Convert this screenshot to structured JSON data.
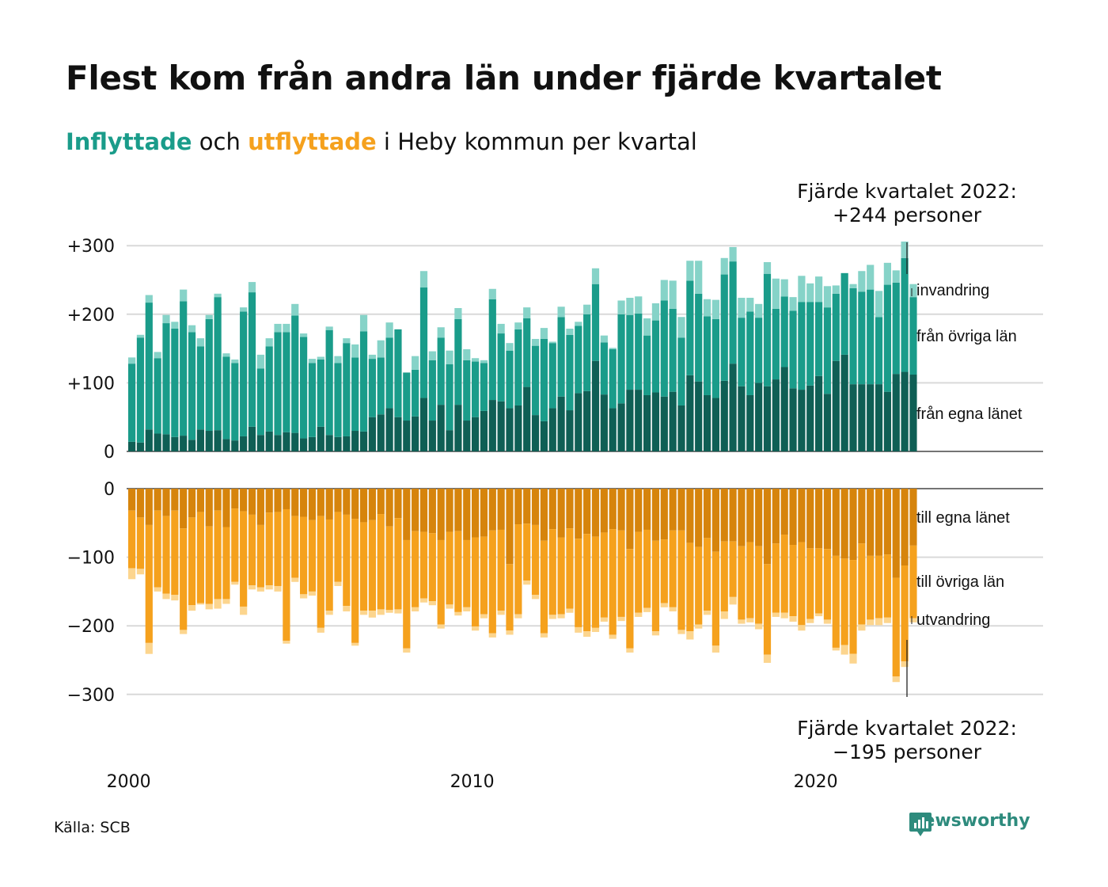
{
  "header": {
    "title": "Flest kom från andra län under fjärde kvartalet",
    "subtitle_in": "Inflyttade",
    "subtitle_and": " och ",
    "subtitle_out": "utflyttade",
    "subtitle_rest": " i Heby kommun per kvartal"
  },
  "annotations": {
    "top_line1": "Fjärde kvartalet 2022:",
    "top_line2": "+244 personer",
    "bottom_line1": "Fjärde kvartalet 2022:",
    "bottom_line2": "−195 personer"
  },
  "footer": {
    "source": "Källa: SCB",
    "brand": "Newsworthy"
  },
  "colors": {
    "in_egna": "#0f5f55",
    "in_ovriga": "#1a9c8a",
    "in_invandring": "#86d3c8",
    "out_egna": "#d6840c",
    "out_ovriga": "#f5a11d",
    "out_utvandring": "#fcd58e",
    "grid": "#d9d9d9",
    "brand": "#2e8b7d"
  },
  "chart_data": {
    "type": "bar",
    "stacked": true,
    "quarters": [
      "2000 Q1",
      "2000 Q2",
      "2000 Q3",
      "2000 Q4",
      "2001 Q1",
      "2001 Q2",
      "2001 Q3",
      "2001 Q4",
      "2002 Q1",
      "2002 Q2",
      "2002 Q3",
      "2002 Q4",
      "2003 Q1",
      "2003 Q2",
      "2003 Q3",
      "2003 Q4",
      "2004 Q1",
      "2004 Q2",
      "2004 Q3",
      "2004 Q4",
      "2005 Q1",
      "2005 Q2",
      "2005 Q3",
      "2005 Q4",
      "2006 Q1",
      "2006 Q2",
      "2006 Q3",
      "2006 Q4",
      "2007 Q1",
      "2007 Q2",
      "2007 Q3",
      "2007 Q4",
      "2008 Q1",
      "2008 Q2",
      "2008 Q3",
      "2008 Q4",
      "2009 Q1",
      "2009 Q2",
      "2009 Q3",
      "2009 Q4",
      "2010 Q1",
      "2010 Q2",
      "2010 Q3",
      "2010 Q4",
      "2011 Q1",
      "2011 Q2",
      "2011 Q3",
      "2011 Q4",
      "2012 Q1",
      "2012 Q2",
      "2012 Q3",
      "2012 Q4",
      "2013 Q1",
      "2013 Q2",
      "2013 Q3",
      "2013 Q4",
      "2014 Q1",
      "2014 Q2",
      "2014 Q3",
      "2014 Q4",
      "2015 Q1",
      "2015 Q2",
      "2015 Q3",
      "2015 Q4",
      "2016 Q1",
      "2016 Q2",
      "2016 Q3",
      "2016 Q4",
      "2017 Q1",
      "2017 Q2",
      "2017 Q3",
      "2017 Q4",
      "2018 Q1",
      "2018 Q2",
      "2018 Q3",
      "2018 Q4",
      "2019 Q1",
      "2019 Q2",
      "2019 Q3",
      "2019 Q4",
      "2020 Q1",
      "2020 Q2",
      "2020 Q3",
      "2020 Q4",
      "2021 Q1",
      "2021 Q2",
      "2021 Q3",
      "2021 Q4",
      "2022 Q1",
      "2022 Q2",
      "2022 Q3",
      "2022 Q4"
    ],
    "x_ticks": [
      {
        "label": "2000",
        "index": 0
      },
      {
        "label": "2010",
        "index": 40
      },
      {
        "label": "2020",
        "index": 80
      }
    ],
    "top_y_ticks": [
      {
        "value": 0,
        "label": "0"
      },
      {
        "value": 100,
        "label": "+100"
      },
      {
        "value": 200,
        "label": "+200"
      },
      {
        "value": 300,
        "label": "+300"
      }
    ],
    "bottom_y_ticks": [
      {
        "value": 0,
        "label": "0"
      },
      {
        "value": -100,
        "label": "−100"
      },
      {
        "value": -200,
        "label": "−200"
      },
      {
        "value": -300,
        "label": "−300"
      }
    ],
    "top_ylim": [
      0,
      300
    ],
    "bottom_ylim": [
      -300,
      0
    ],
    "inflyttade": {
      "series": [
        {
          "name": "från egna länet",
          "values": [
            14,
            13,
            32,
            26,
            25,
            21,
            23,
            17,
            32,
            30,
            31,
            18,
            16,
            22,
            36,
            24,
            29,
            24,
            28,
            27,
            19,
            21,
            36,
            24,
            21,
            22,
            30,
            29,
            50,
            54,
            63,
            50,
            45,
            51,
            78,
            45,
            68,
            31,
            68,
            45,
            50,
            59,
            75,
            73,
            63,
            67,
            94,
            53,
            44,
            63,
            80,
            60,
            85,
            88,
            132,
            83,
            63,
            70,
            90,
            90,
            82,
            86,
            80,
            87,
            67,
            111,
            102,
            82,
            78,
            103,
            128,
            95,
            82,
            100,
            95,
            105,
            123,
            92,
            90,
            96,
            110,
            84,
            132,
            141,
            98,
            98,
            98,
            98,
            87,
            113,
            116,
            112
          ]
        },
        {
          "name": "från övriga län",
          "values": [
            114,
            153,
            185,
            110,
            162,
            158,
            196,
            157,
            121,
            163,
            194,
            120,
            113,
            182,
            196,
            97,
            124,
            150,
            146,
            171,
            148,
            108,
            98,
            153,
            108,
            136,
            107,
            146,
            85,
            83,
            103,
            128,
            70,
            68,
            161,
            88,
            98,
            96,
            125,
            88,
            81,
            70,
            147,
            99,
            84,
            111,
            100,
            101,
            120,
            95,
            116,
            110,
            98,
            112,
            112,
            76,
            86,
            130,
            109,
            111,
            87,
            105,
            140,
            121,
            99,
            138,
            128,
            115,
            115,
            155,
            149,
            100,
            122,
            95,
            164,
            103,
            103,
            113,
            128,
            122,
            108,
            126,
            98,
            119,
            140,
            135,
            138,
            98,
            156,
            133,
            166,
            113
          ]
        },
        {
          "name": "invandring",
          "values": [
            9,
            4,
            11,
            9,
            12,
            10,
            17,
            10,
            12,
            6,
            5,
            5,
            5,
            6,
            15,
            20,
            12,
            12,
            12,
            17,
            5,
            6,
            4,
            5,
            10,
            7,
            19,
            24,
            6,
            25,
            22,
            0,
            0,
            20,
            24,
            13,
            15,
            20,
            16,
            16,
            5,
            4,
            15,
            14,
            11,
            10,
            16,
            10,
            16,
            2,
            15,
            9,
            6,
            14,
            23,
            10,
            2,
            20,
            25,
            25,
            25,
            25,
            30,
            41,
            30,
            29,
            48,
            25,
            28,
            24,
            21,
            29,
            20,
            20,
            17,
            44,
            25,
            20,
            38,
            27,
            37,
            31,
            12,
            0,
            6,
            30,
            36,
            38,
            32,
            18,
            24,
            19
          ]
        }
      ]
    },
    "utflyttade": {
      "series": [
        {
          "name": "till egna länet",
          "values": [
            -32,
            -42,
            -53,
            -32,
            -40,
            -32,
            -58,
            -42,
            -34,
            -55,
            -32,
            -56,
            -29,
            -33,
            -38,
            -53,
            -35,
            -34,
            -30,
            -40,
            -41,
            -46,
            -40,
            -45,
            -34,
            -38,
            -44,
            -49,
            -46,
            -37,
            -55,
            -43,
            -75,
            -62,
            -63,
            -65,
            -75,
            -63,
            -62,
            -75,
            -71,
            -70,
            -61,
            -60,
            -110,
            -52,
            -51,
            -53,
            -76,
            -59,
            -71,
            -58,
            -73,
            -66,
            -70,
            -64,
            -59,
            -61,
            -88,
            -63,
            -60,
            -76,
            -74,
            -61,
            -61,
            -79,
            -85,
            -72,
            -92,
            -77,
            -77,
            -84,
            -78,
            -84,
            -110,
            -80,
            -67,
            -82,
            -78,
            -87,
            -87,
            -88,
            -98,
            -102,
            -104,
            -80,
            -98,
            -98,
            -96,
            -130,
            -112,
            -83
          ]
        },
        {
          "name": "till övriga län",
          "values": [
            -84,
            -75,
            -172,
            -112,
            -113,
            -123,
            -148,
            -128,
            -133,
            -113,
            -129,
            -105,
            -107,
            -139,
            -103,
            -91,
            -106,
            -108,
            -192,
            -90,
            -113,
            -104,
            -163,
            -133,
            -102,
            -133,
            -181,
            -129,
            -132,
            -139,
            -122,
            -133,
            -158,
            -111,
            -97,
            -99,
            -123,
            -106,
            -118,
            -98,
            -130,
            -113,
            -150,
            -118,
            -97,
            -131,
            -83,
            -102,
            -135,
            -125,
            -112,
            -117,
            -129,
            -142,
            -133,
            -124,
            -154,
            -126,
            -145,
            -118,
            -114,
            -132,
            -93,
            -112,
            -145,
            -129,
            -113,
            -106,
            -137,
            -102,
            -81,
            -107,
            -111,
            -113,
            -132,
            -101,
            -114,
            -104,
            -121,
            -103,
            -95,
            -103,
            -134,
            -126,
            -137,
            -118,
            -93,
            -91,
            -92,
            -144,
            -140,
            -106
          ]
        },
        {
          "name": "utvandring",
          "values": [
            -16,
            -8,
            -16,
            -6,
            -8,
            -8,
            -6,
            -8,
            -2,
            -8,
            -14,
            -7,
            -4,
            -12,
            -6,
            -6,
            -6,
            -8,
            -4,
            -6,
            -6,
            -6,
            -7,
            -6,
            -6,
            -8,
            -4,
            -6,
            -10,
            -8,
            -4,
            -6,
            -6,
            -6,
            -6,
            -6,
            -6,
            -6,
            -5,
            -6,
            -6,
            -6,
            -6,
            -6,
            -6,
            -6,
            -6,
            -6,
            -6,
            -6,
            -6,
            -6,
            -8,
            -8,
            -6,
            -6,
            -6,
            -6,
            -6,
            -6,
            -6,
            -6,
            -6,
            -6,
            -6,
            -12,
            -6,
            -6,
            -10,
            -11,
            -11,
            -6,
            -6,
            -8,
            -12,
            -6,
            -8,
            -8,
            -8,
            -6,
            -4,
            -6,
            -4,
            -14,
            -14,
            -9,
            -8,
            -10,
            -8,
            -8,
            -8,
            -6
          ]
        }
      ]
    },
    "legend_in": [
      "invandring",
      "från övriga län",
      "från egna länet"
    ],
    "legend_out": [
      "till egna länet",
      "till övriga län",
      "utvandring"
    ]
  }
}
